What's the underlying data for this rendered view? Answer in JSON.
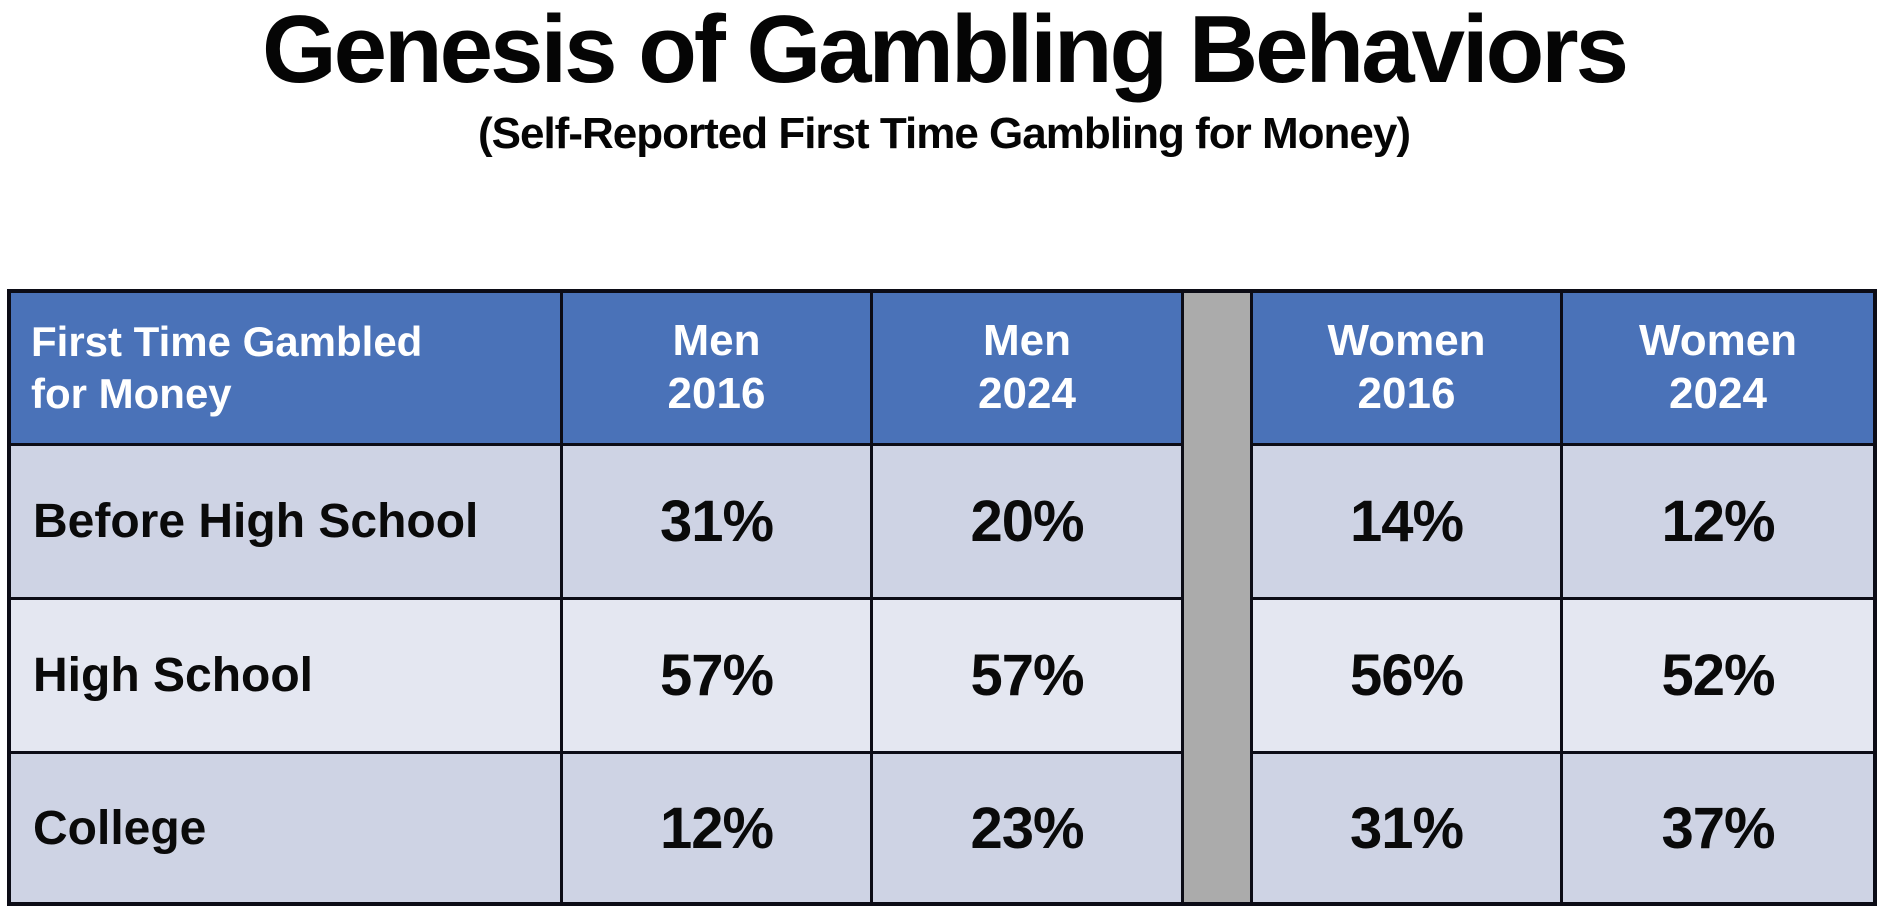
{
  "title": "Genesis of Gambling Behaviors",
  "subtitle": "(Self-Reported First Time Gambling for Money)",
  "table": {
    "corner_header": {
      "line1": "First Time Gambled",
      "line2": "for Money"
    },
    "columns": [
      {
        "group": "Men",
        "year": "2016"
      },
      {
        "group": "Men",
        "year": "2024"
      },
      {
        "group": "Women",
        "year": "2016"
      },
      {
        "group": "Women",
        "year": "2024"
      }
    ],
    "rows": [
      {
        "label": "Before High School",
        "values": [
          "31%",
          "20%",
          "14%",
          "12%"
        ]
      },
      {
        "label": "High School",
        "values": [
          "57%",
          "57%",
          "56%",
          "52%"
        ]
      },
      {
        "label": "College",
        "values": [
          "12%",
          "23%",
          "31%",
          "37%"
        ]
      }
    ]
  },
  "colors": {
    "header_blue": "#4a72b8",
    "row_shade_dark": "#ced3e4",
    "row_shade_light": "#e4e7f1",
    "spacer_gray": "#ababab",
    "border": "#0c0c16",
    "header_text": "#ffffff",
    "body_text": "#0a0a0a",
    "background": "#ffffff"
  },
  "chart_data": {
    "type": "table",
    "title": "Genesis of Gambling Behaviors",
    "subtitle": "(Self-Reported First Time Gambling for Money)",
    "row_header": "First Time Gambled for Money",
    "columns": [
      "Men 2016",
      "Men 2024",
      "Women 2016",
      "Women 2024"
    ],
    "rows": [
      {
        "category": "Before High School",
        "values_pct": [
          31,
          20,
          14,
          12
        ]
      },
      {
        "category": "High School",
        "values_pct": [
          57,
          57,
          56,
          52
        ]
      },
      {
        "category": "College",
        "values_pct": [
          12,
          23,
          31,
          37
        ]
      }
    ]
  }
}
